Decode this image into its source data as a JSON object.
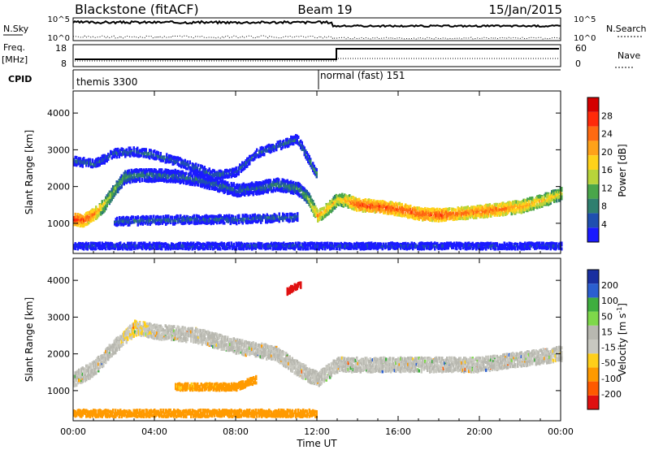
{
  "header": {
    "station": "Blackstone (fitACF)",
    "beam": "Beam 19",
    "date": "15/Jan/2015"
  },
  "summary": {
    "nsky_label": "N.Sky",
    "nsky_ticks": [
      "10^5",
      "10^0"
    ],
    "nsearch_label": "N.Search",
    "nsearch_ticks": [
      "10^5",
      "10^0"
    ],
    "freq_label": "Freq.",
    "freq_unit": "[MHz]",
    "freq_ticks": [
      "18",
      "8"
    ],
    "nave_label": "Nave",
    "nave_ticks": [
      "60",
      "0"
    ],
    "cpid_label": "CPID",
    "cpid_segments": [
      {
        "label": "themis 3300",
        "start_hour": 0
      },
      {
        "label": "normal (fast) 151",
        "start_hour": 12
      }
    ]
  },
  "x_axis": {
    "label": "Time UT",
    "ticks": [
      "00:00",
      "04:00",
      "08:00",
      "12:00",
      "16:00",
      "20:00",
      "00:00"
    ],
    "tick_hours": [
      0,
      4,
      8,
      12,
      16,
      20,
      24
    ],
    "range_hours": [
      0,
      24
    ]
  },
  "power_panel": {
    "ylabel": "Slant Range [km]",
    "yticks": [
      "1000",
      "2000",
      "3000",
      "4000"
    ],
    "ytick_values": [
      1000,
      2000,
      3000,
      4000
    ],
    "ylim": [
      180,
      4600
    ],
    "cbar_label": "Power [dB]",
    "cbar_ticks": [
      "4",
      "8",
      "12",
      "16",
      "20",
      "24",
      "28"
    ],
    "cbar_colors": [
      "#1a1aff",
      "#1f4fb0",
      "#2f7f6f",
      "#4aa64a",
      "#b8d43a",
      "#ffd21a",
      "#ffa21a",
      "#ff6a12",
      "#ff2a0a",
      "#d40000"
    ]
  },
  "velocity_panel": {
    "ylabel": "Slant Range [km]",
    "yticks": [
      "1000",
      "2000",
      "3000",
      "4000"
    ],
    "ytick_values": [
      1000,
      2000,
      3000,
      4000
    ],
    "ylim": [
      180,
      4600
    ],
    "cbar_label": "Velocity [m s",
    "cbar_label_sup": "-1",
    "cbar_label_end": "]",
    "cbar_ticks": [
      "-200",
      "-100",
      "-50",
      "-15",
      "15",
      "50",
      "100",
      "200"
    ],
    "cbar_colors": [
      "#e01010",
      "#ff5a00",
      "#ff9a00",
      "#ffcf1a",
      "#c8c8c0",
      "#b8b8b0",
      "#7ed84a",
      "#3fae3f",
      "#2b5fd0",
      "#1a2fa0"
    ]
  },
  "chart_data": {
    "type": "heatmap",
    "title": "Blackstone (fitACF)",
    "xlabel": "Time UT",
    "ylabel": "Slant Range [km]",
    "xlim": [
      0,
      24
    ],
    "ylim": [
      180,
      4600
    ],
    "power_bands": [
      {
        "name": "main",
        "points": [
          [
            0.0,
            1100,
            28
          ],
          [
            0.5,
            1080,
            26
          ],
          [
            1.0,
            1250,
            24
          ],
          [
            1.5,
            1500,
            18
          ],
          [
            2.0,
            1900,
            14
          ],
          [
            2.5,
            2250,
            12
          ],
          [
            3.0,
            2300,
            10
          ],
          [
            4.0,
            2300,
            8
          ],
          [
            5.0,
            2280,
            8
          ],
          [
            6.0,
            2200,
            8
          ],
          [
            7.0,
            2050,
            8
          ],
          [
            8.0,
            1900,
            8
          ],
          [
            9.0,
            1950,
            8
          ],
          [
            10.0,
            2050,
            10
          ],
          [
            11.0,
            1950,
            10
          ],
          [
            11.5,
            1700,
            14
          ],
          [
            12.0,
            1200,
            22
          ],
          [
            12.5,
            1400,
            20
          ],
          [
            13.0,
            1650,
            18
          ],
          [
            13.5,
            1600,
            22
          ],
          [
            14.0,
            1500,
            26
          ],
          [
            15.0,
            1450,
            26
          ],
          [
            16.0,
            1380,
            26
          ],
          [
            17.0,
            1250,
            26
          ],
          [
            18.0,
            1220,
            26
          ],
          [
            19.0,
            1260,
            24
          ],
          [
            20.0,
            1320,
            24
          ],
          [
            21.0,
            1380,
            24
          ],
          [
            22.0,
            1450,
            22
          ],
          [
            23.0,
            1600,
            20
          ],
          [
            24.0,
            1800,
            18
          ]
        ]
      },
      {
        "name": "upper",
        "points": [
          [
            0.0,
            2700,
            8
          ],
          [
            1.0,
            2600,
            8
          ],
          [
            2.0,
            2900,
            8
          ],
          [
            3.0,
            2950,
            8
          ],
          [
            4.0,
            2850,
            8
          ],
          [
            5.0,
            2700,
            8
          ],
          [
            6.0,
            2500,
            8
          ],
          [
            7.0,
            2300,
            8
          ],
          [
            8.0,
            2400,
            8
          ],
          [
            9.0,
            2900,
            8
          ],
          [
            10.0,
            3100,
            8
          ],
          [
            11.0,
            3300,
            8
          ],
          [
            12.0,
            2300,
            12
          ]
        ]
      },
      {
        "name": "lower",
        "points": [
          [
            2.0,
            1050,
            8
          ],
          [
            4.0,
            1080,
            8
          ],
          [
            6.0,
            1100,
            8
          ],
          [
            8.0,
            1100,
            8
          ],
          [
            10.0,
            1150,
            8
          ],
          [
            11.0,
            1150,
            8
          ]
        ]
      },
      {
        "name": "near",
        "points": [
          [
            0.0,
            380,
            6
          ],
          [
            4.0,
            380,
            6
          ],
          [
            8.0,
            380,
            6
          ],
          [
            12.0,
            380,
            6
          ],
          [
            16.0,
            380,
            6
          ],
          [
            20.0,
            380,
            6
          ],
          [
            24.0,
            380,
            6
          ]
        ]
      }
    ],
    "velocity_bands": [
      {
        "name": "main",
        "points": [
          [
            0.0,
            1300,
            0
          ],
          [
            1.0,
            1600,
            0
          ],
          [
            2.0,
            2200,
            0
          ],
          [
            3.0,
            2700,
            -20
          ],
          [
            4.0,
            2600,
            0
          ],
          [
            6.0,
            2500,
            0
          ],
          [
            8.0,
            2200,
            0
          ],
          [
            10.0,
            2000,
            0
          ],
          [
            11.0,
            1600,
            0
          ],
          [
            12.0,
            1300,
            0
          ],
          [
            13.0,
            1700,
            0
          ],
          [
            16.0,
            1700,
            0
          ],
          [
            20.0,
            1700,
            0
          ],
          [
            24.0,
            2000,
            0
          ]
        ]
      },
      {
        "name": "lower_orange",
        "points": [
          [
            5.0,
            1100,
            -60
          ],
          [
            7.0,
            1100,
            -60
          ],
          [
            8.0,
            1100,
            -80
          ],
          [
            9.0,
            1300,
            -80
          ]
        ]
      },
      {
        "name": "near_orange",
        "points": [
          [
            0.0,
            380,
            -70
          ],
          [
            4.0,
            380,
            -70
          ],
          [
            8.0,
            380,
            -70
          ],
          [
            12.0,
            380,
            -70
          ]
        ]
      },
      {
        "name": "red_patch",
        "points": [
          [
            10.5,
            3700,
            -250
          ],
          [
            11.2,
            3900,
            -250
          ]
        ]
      }
    ]
  }
}
